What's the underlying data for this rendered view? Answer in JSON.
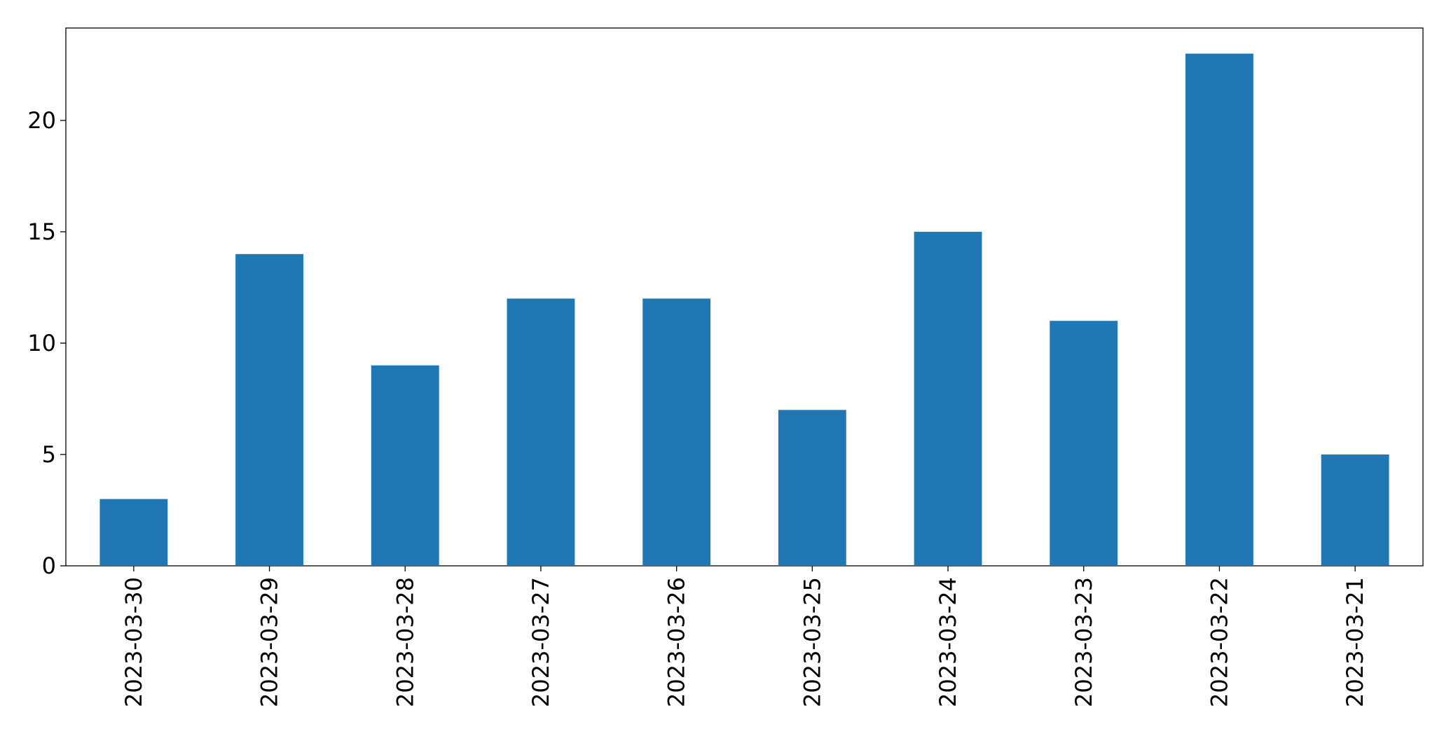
{
  "chart_data": {
    "type": "bar",
    "categories": [
      "2023-03-30",
      "2023-03-29",
      "2023-03-28",
      "2023-03-27",
      "2023-03-26",
      "2023-03-25",
      "2023-03-24",
      "2023-03-23",
      "2023-03-22",
      "2023-03-21"
    ],
    "values": [
      3,
      14,
      9,
      12,
      12,
      7,
      15,
      11,
      23,
      5
    ],
    "color": "#1f77b4",
    "ylim": [
      0,
      24.15
    ],
    "yticks": [
      0,
      5,
      10,
      15,
      20
    ],
    "grid": false
  }
}
